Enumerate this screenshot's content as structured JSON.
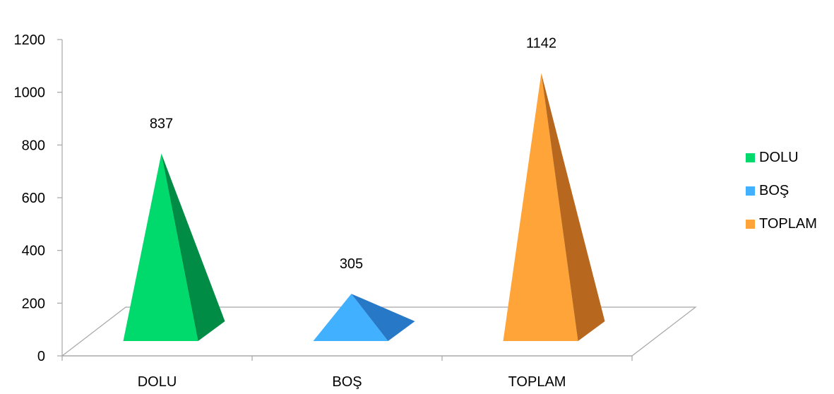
{
  "chart_data": {
    "type": "bar",
    "style": "3d-pyramid",
    "categories": [
      "DOLU",
      "BOŞ",
      "TOPLAM"
    ],
    "values": [
      837,
      305,
      1142
    ],
    "colors": [
      {
        "front": "#00d96b",
        "side": "#008c45"
      },
      {
        "front": "#40b0ff",
        "side": "#2878c8"
      },
      {
        "front": "#ffa438",
        "side": "#b8681e"
      }
    ],
    "yticks": [
      0,
      200,
      400,
      600,
      800,
      1000,
      1200
    ],
    "ylim": [
      0,
      1200
    ],
    "grid": false,
    "legend": {
      "position": "right",
      "entries": [
        "DOLU",
        "BOŞ",
        "TOPLAM"
      ]
    }
  }
}
